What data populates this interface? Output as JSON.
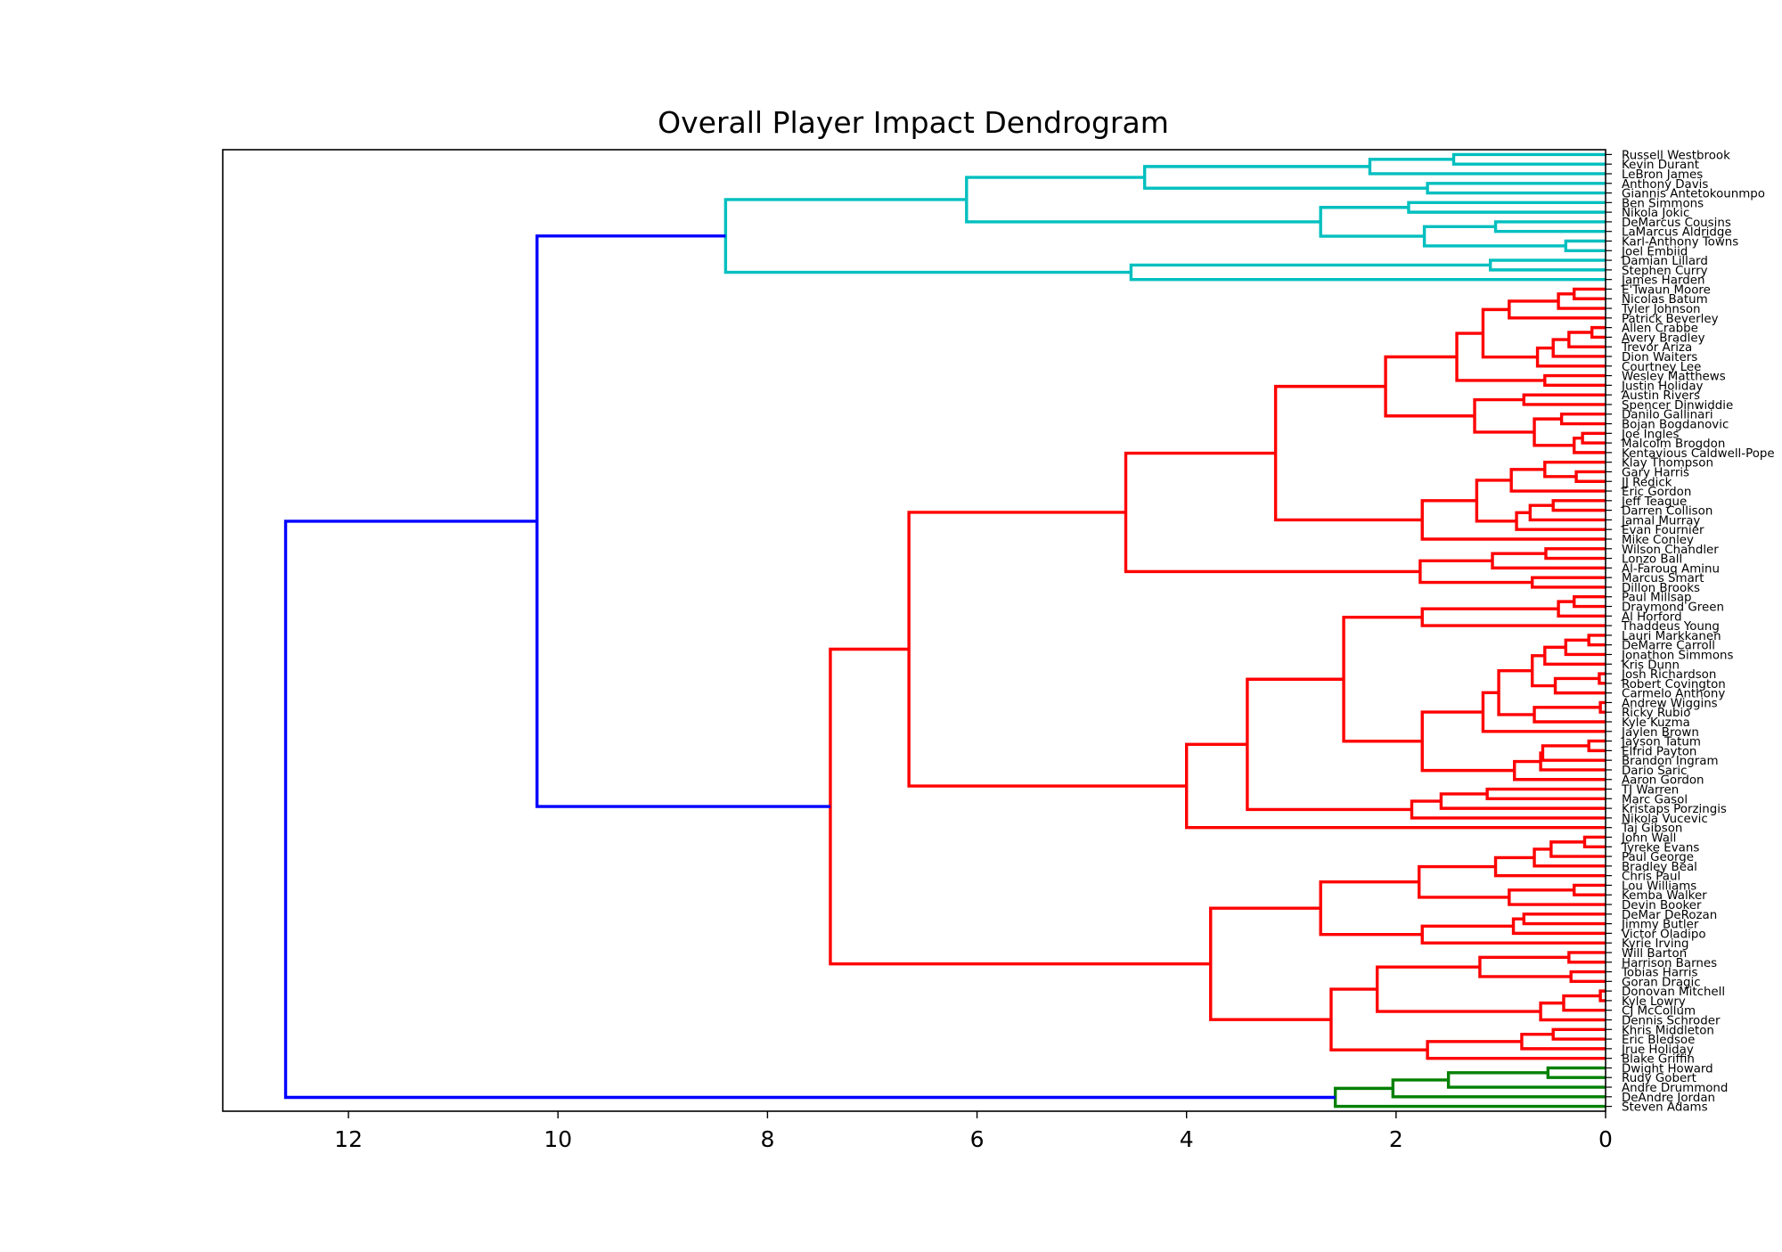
{
  "chart_data": {
    "type": "dendrogram",
    "orientation": "horizontal",
    "title": "Overall Player Impact Dendrogram",
    "xlabel": "",
    "ylabel": "",
    "xlim": [
      13.2,
      0
    ],
    "x_ticks": [
      "12",
      "10",
      "8",
      "6",
      "4",
      "2",
      "0"
    ],
    "x_tick_values": [
      12,
      10,
      8,
      6,
      4,
      2,
      0
    ],
    "grid": false,
    "colors": {
      "above_threshold": "#0000ff",
      "cluster_1": "#00bfbf",
      "cluster_2": "#ff0000",
      "cluster_3": "#008000"
    },
    "leaves": [
      "Russell Westbrook",
      "Kevin Durant",
      "LeBron James",
      "Anthony Davis",
      "Giannis Antetokounmpo",
      "Ben Simmons",
      "Nikola Jokic",
      "DeMarcus Cousins",
      "LaMarcus Aldridge",
      "Karl-Anthony Towns",
      "Joel Embiid",
      "Damian Lillard",
      "Stephen Curry",
      "James Harden",
      "E'Twaun Moore",
      "Nicolas Batum",
      "Tyler Johnson",
      "Patrick Beverley",
      "Allen Crabbe",
      "Avery Bradley",
      "Trevor Ariza",
      "Dion Waiters",
      "Courtney Lee",
      "Wesley Matthews",
      "Justin Holiday",
      "Austin Rivers",
      "Spencer Dinwiddie",
      "Danilo Gallinari",
      "Bojan Bogdanovic",
      "Joe Ingles",
      "Malcolm Brogdon",
      "Kentavious Caldwell-Pope",
      "Klay Thompson",
      "Gary Harris",
      "JJ Redick",
      "Eric Gordon",
      "Jeff Teague",
      "Darren Collison",
      "Jamal Murray",
      "Evan Fournier",
      "Mike Conley",
      "Wilson Chandler",
      "Lonzo Ball",
      "Al-Farouq Aminu",
      "Marcus Smart",
      "Dillon Brooks",
      "Paul Millsap",
      "Draymond Green",
      "Al Horford",
      "Thaddeus Young",
      "Lauri Markkanen",
      "DeMarre Carroll",
      "Jonathon Simmons",
      "Kris Dunn",
      "Josh Richardson",
      "Robert Covington",
      "Carmelo Anthony",
      "Andrew Wiggins",
      "Ricky Rubio",
      "Kyle Kuzma",
      "Jaylen Brown",
      "Jayson Tatum",
      "Elfrid Payton",
      "Brandon Ingram",
      "Dario Saric",
      "Aaron Gordon",
      "TJ Warren",
      "Marc Gasol",
      "Kristaps Porzingis",
      "Nikola Vucevic",
      "Taj Gibson",
      "John Wall",
      "Tyreke Evans",
      "Paul George",
      "Bradley Beal",
      "Chris Paul",
      "Lou Williams",
      "Kemba Walker",
      "Devin Booker",
      "DeMar DeRozan",
      "Jimmy Butler",
      "Victor Oladipo",
      "Kyrie Irving",
      "Will Barton",
      "Harrison Barnes",
      "Tobias Harris",
      "Goran Dragic",
      "Donovan Mitchell",
      "Kyle Lowry",
      "CJ McCollum",
      "Dennis Schroder",
      "Khris Middleton",
      "Eric Bledsoe",
      "Jrue Holiday",
      "Blake Griffin",
      "Dwight Howard",
      "Rudy Gobert",
      "Andre Drummond",
      "DeAndre Jordan",
      "Steven Adams"
    ],
    "merges": [
      {
        "id": "a1",
        "a": "L0",
        "b": "L1",
        "h": 1.45,
        "c": "cluster_1"
      },
      {
        "id": "a2",
        "a": "a1",
        "b": "L2",
        "h": 2.25,
        "c": "cluster_1"
      },
      {
        "id": "a3",
        "a": "L3",
        "b": "L4",
        "h": 1.7,
        "c": "cluster_1"
      },
      {
        "id": "a4",
        "a": "a2",
        "b": "a3",
        "h": 4.4,
        "c": "cluster_1"
      },
      {
        "id": "a5",
        "a": "L5",
        "b": "L6",
        "h": 1.88,
        "c": "cluster_1"
      },
      {
        "id": "a6",
        "a": "L7",
        "b": "L8",
        "h": 1.05,
        "c": "cluster_1"
      },
      {
        "id": "a7",
        "a": "L9",
        "b": "L10",
        "h": 0.38,
        "c": "cluster_1"
      },
      {
        "id": "a8",
        "a": "a6",
        "b": "a7",
        "h": 1.73,
        "c": "cluster_1"
      },
      {
        "id": "a9",
        "a": "a5",
        "b": "a8",
        "h": 2.72,
        "c": "cluster_1"
      },
      {
        "id": "a10",
        "a": "a4",
        "b": "a9",
        "h": 6.1,
        "c": "cluster_1"
      },
      {
        "id": "a11",
        "a": "L11",
        "b": "L12",
        "h": 1.1,
        "c": "cluster_1"
      },
      {
        "id": "a12",
        "a": "a11",
        "b": "L13",
        "h": 4.53,
        "c": "cluster_1"
      },
      {
        "id": "a13",
        "a": "a10",
        "b": "a12",
        "h": 8.4,
        "c": "cluster_1"
      },
      {
        "id": "b1",
        "a": "L14",
        "b": "L15",
        "h": 0.3,
        "c": "cluster_2"
      },
      {
        "id": "b2",
        "a": "b1",
        "b": "L16",
        "h": 0.45,
        "c": "cluster_2"
      },
      {
        "id": "b3",
        "a": "b2",
        "b": "L17",
        "h": 0.92,
        "c": "cluster_2"
      },
      {
        "id": "b4",
        "a": "L18",
        "b": "L19",
        "h": 0.13,
        "c": "cluster_2"
      },
      {
        "id": "b5",
        "a": "b4",
        "b": "L20",
        "h": 0.35,
        "c": "cluster_2"
      },
      {
        "id": "b6",
        "a": "b5",
        "b": "L21",
        "h": 0.5,
        "c": "cluster_2"
      },
      {
        "id": "b7",
        "a": "b6",
        "b": "L22",
        "h": 0.65,
        "c": "cluster_2"
      },
      {
        "id": "b8",
        "a": "b3",
        "b": "b7",
        "h": 1.17,
        "c": "cluster_2"
      },
      {
        "id": "b9",
        "a": "L23",
        "b": "L24",
        "h": 0.58,
        "c": "cluster_2"
      },
      {
        "id": "b10",
        "a": "b8",
        "b": "b9",
        "h": 1.42,
        "c": "cluster_2"
      },
      {
        "id": "b11",
        "a": "L25",
        "b": "L26",
        "h": 0.78,
        "c": "cluster_2"
      },
      {
        "id": "b12",
        "a": "L27",
        "b": "L28",
        "h": 0.42,
        "c": "cluster_2"
      },
      {
        "id": "b13",
        "a": "L29",
        "b": "L30",
        "h": 0.22,
        "c": "cluster_2"
      },
      {
        "id": "b14",
        "a": "b13",
        "b": "L31",
        "h": 0.3,
        "c": "cluster_2"
      },
      {
        "id": "b15",
        "a": "b12",
        "b": "b14",
        "h": 0.68,
        "c": "cluster_2"
      },
      {
        "id": "b16",
        "a": "b11",
        "b": "b15",
        "h": 1.25,
        "c": "cluster_2"
      },
      {
        "id": "b17",
        "a": "b10",
        "b": "b16",
        "h": 2.1,
        "c": "cluster_2"
      },
      {
        "id": "b18",
        "a": "L33",
        "b": "L34",
        "h": 0.28,
        "c": "cluster_2"
      },
      {
        "id": "b19",
        "a": "L32",
        "b": "b18",
        "h": 0.58,
        "c": "cluster_2"
      },
      {
        "id": "b20",
        "a": "b19",
        "b": "L35",
        "h": 0.9,
        "c": "cluster_2"
      },
      {
        "id": "b21",
        "a": "L36",
        "b": "L37",
        "h": 0.5,
        "c": "cluster_2"
      },
      {
        "id": "b22",
        "a": "b21",
        "b": "L38",
        "h": 0.72,
        "c": "cluster_2"
      },
      {
        "id": "b23",
        "a": "b22",
        "b": "L39",
        "h": 0.85,
        "c": "cluster_2"
      },
      {
        "id": "b24",
        "a": "b20",
        "b": "b23",
        "h": 1.23,
        "c": "cluster_2"
      },
      {
        "id": "b25",
        "a": "b24",
        "b": "L40",
        "h": 1.75,
        "c": "cluster_2"
      },
      {
        "id": "b26",
        "a": "b17",
        "b": "b25",
        "h": 3.15,
        "c": "cluster_2"
      },
      {
        "id": "b27",
        "a": "L41",
        "b": "L42",
        "h": 0.57,
        "c": "cluster_2"
      },
      {
        "id": "b28",
        "a": "b27",
        "b": "L43",
        "h": 1.08,
        "c": "cluster_2"
      },
      {
        "id": "b29",
        "a": "L44",
        "b": "L45",
        "h": 0.7,
        "c": "cluster_2"
      },
      {
        "id": "b30",
        "a": "b28",
        "b": "b29",
        "h": 1.77,
        "c": "cluster_2"
      },
      {
        "id": "b31",
        "a": "b26",
        "b": "b30",
        "h": 4.58,
        "c": "cluster_2"
      },
      {
        "id": "b32",
        "a": "L46",
        "b": "L47",
        "h": 0.3,
        "c": "cluster_2"
      },
      {
        "id": "b33",
        "a": "b32",
        "b": "L48",
        "h": 0.45,
        "c": "cluster_2"
      },
      {
        "id": "b34",
        "a": "b33",
        "b": "L49",
        "h": 1.75,
        "c": "cluster_2"
      },
      {
        "id": "b35",
        "a": "L50",
        "b": "L51",
        "h": 0.16,
        "c": "cluster_2"
      },
      {
        "id": "b36",
        "a": "b35",
        "b": "L52",
        "h": 0.38,
        "c": "cluster_2"
      },
      {
        "id": "b37",
        "a": "b36",
        "b": "L53",
        "h": 0.58,
        "c": "cluster_2"
      },
      {
        "id": "b38",
        "a": "L54",
        "b": "L55",
        "h": 0.06,
        "c": "cluster_2"
      },
      {
        "id": "b39",
        "a": "b38",
        "b": "L56",
        "h": 0.48,
        "c": "cluster_2"
      },
      {
        "id": "b40",
        "a": "b37",
        "b": "b39",
        "h": 0.7,
        "c": "cluster_2"
      },
      {
        "id": "b41",
        "a": "L57",
        "b": "L58",
        "h": 0.05,
        "c": "cluster_2"
      },
      {
        "id": "b42",
        "a": "b41",
        "b": "L59",
        "h": 0.68,
        "c": "cluster_2"
      },
      {
        "id": "b43",
        "a": "b40",
        "b": "b42",
        "h": 1.02,
        "c": "cluster_2"
      },
      {
        "id": "b44",
        "a": "b43",
        "b": "L60",
        "h": 1.17,
        "c": "cluster_2"
      },
      {
        "id": "b45",
        "a": "L61",
        "b": "L62",
        "h": 0.16,
        "c": "cluster_2"
      },
      {
        "id": "b46",
        "a": "b45",
        "b": "L63",
        "h": 0.6,
        "c": "cluster_2"
      },
      {
        "id": "b47",
        "a": "b46",
        "b": "L64",
        "h": 0.62,
        "c": "cluster_2"
      },
      {
        "id": "b48",
        "a": "b47",
        "b": "L65",
        "h": 0.87,
        "c": "cluster_2"
      },
      {
        "id": "b49",
        "a": "b44",
        "b": "b48",
        "h": 1.75,
        "c": "cluster_2"
      },
      {
        "id": "b50",
        "a": "b34",
        "b": "b49",
        "h": 2.5,
        "c": "cluster_2"
      },
      {
        "id": "b51",
        "a": "L66",
        "b": "L67",
        "h": 1.13,
        "c": "cluster_2"
      },
      {
        "id": "b52",
        "a": "b51",
        "b": "L68",
        "h": 1.57,
        "c": "cluster_2"
      },
      {
        "id": "b53",
        "a": "b52",
        "b": "L69",
        "h": 1.85,
        "c": "cluster_2"
      },
      {
        "id": "b54",
        "a": "b50",
        "b": "b53",
        "h": 3.42,
        "c": "cluster_2"
      },
      {
        "id": "b55",
        "a": "b54",
        "b": "L70",
        "h": 4.0,
        "c": "cluster_2"
      },
      {
        "id": "b56",
        "a": "b31",
        "b": "b55",
        "h": 6.65,
        "c": "cluster_2"
      },
      {
        "id": "b57",
        "a": "L71",
        "b": "L72",
        "h": 0.2,
        "c": "cluster_2"
      },
      {
        "id": "b58",
        "a": "b57",
        "b": "L73",
        "h": 0.52,
        "c": "cluster_2"
      },
      {
        "id": "b59",
        "a": "b58",
        "b": "L74",
        "h": 0.68,
        "c": "cluster_2"
      },
      {
        "id": "b60",
        "a": "b59",
        "b": "L75",
        "h": 1.05,
        "c": "cluster_2"
      },
      {
        "id": "b61",
        "a": "L76",
        "b": "L77",
        "h": 0.3,
        "c": "cluster_2"
      },
      {
        "id": "b62",
        "a": "b61",
        "b": "L78",
        "h": 0.92,
        "c": "cluster_2"
      },
      {
        "id": "b63",
        "a": "b60",
        "b": "b62",
        "h": 1.78,
        "c": "cluster_2"
      },
      {
        "id": "b64",
        "a": "L79",
        "b": "L80",
        "h": 0.78,
        "c": "cluster_2"
      },
      {
        "id": "b65",
        "a": "b64",
        "b": "L81",
        "h": 0.88,
        "c": "cluster_2"
      },
      {
        "id": "b66",
        "a": "b65",
        "b": "L82",
        "h": 1.75,
        "c": "cluster_2"
      },
      {
        "id": "b67",
        "a": "b63",
        "b": "b66",
        "h": 2.72,
        "c": "cluster_2"
      },
      {
        "id": "b68",
        "a": "L83",
        "b": "L84",
        "h": 0.35,
        "c": "cluster_2"
      },
      {
        "id": "b69",
        "a": "L85",
        "b": "L86",
        "h": 0.33,
        "c": "cluster_2"
      },
      {
        "id": "b70",
        "a": "b68",
        "b": "b69",
        "h": 1.2,
        "c": "cluster_2"
      },
      {
        "id": "b71",
        "a": "L87",
        "b": "L88",
        "h": 0.05,
        "c": "cluster_2"
      },
      {
        "id": "b72",
        "a": "b71",
        "b": "L89",
        "h": 0.4,
        "c": "cluster_2"
      },
      {
        "id": "b73",
        "a": "b72",
        "b": "L90",
        "h": 0.62,
        "c": "cluster_2"
      },
      {
        "id": "b74",
        "a": "b70",
        "b": "b73",
        "h": 2.18,
        "c": "cluster_2"
      },
      {
        "id": "b75",
        "a": "L91",
        "b": "L92",
        "h": 0.5,
        "c": "cluster_2"
      },
      {
        "id": "b76",
        "a": "b75",
        "b": "L93",
        "h": 0.8,
        "c": "cluster_2"
      },
      {
        "id": "b77",
        "a": "b76",
        "b": "L94",
        "h": 1.7,
        "c": "cluster_2"
      },
      {
        "id": "b78",
        "a": "b74",
        "b": "b77",
        "h": 2.62,
        "c": "cluster_2"
      },
      {
        "id": "b79",
        "a": "b67",
        "b": "b78",
        "h": 3.77,
        "c": "cluster_2"
      },
      {
        "id": "b80",
        "a": "b56",
        "b": "b79",
        "h": 7.4,
        "c": "cluster_2"
      },
      {
        "id": "c1",
        "a": "L95",
        "b": "L96",
        "h": 0.55,
        "c": "cluster_3"
      },
      {
        "id": "c2",
        "a": "c1",
        "b": "L97",
        "h": 1.5,
        "c": "cluster_3"
      },
      {
        "id": "c3",
        "a": "c2",
        "b": "L98",
        "h": 2.03,
        "c": "cluster_3"
      },
      {
        "id": "c4",
        "a": "c3",
        "b": "L99",
        "h": 2.58,
        "c": "cluster_3"
      },
      {
        "id": "r1",
        "a": "a13",
        "b": "b80",
        "h": 10.2,
        "c": "above_threshold"
      },
      {
        "id": "r2",
        "a": "r1",
        "b": "c4",
        "h": 12.6,
        "c": "above_threshold"
      }
    ]
  }
}
